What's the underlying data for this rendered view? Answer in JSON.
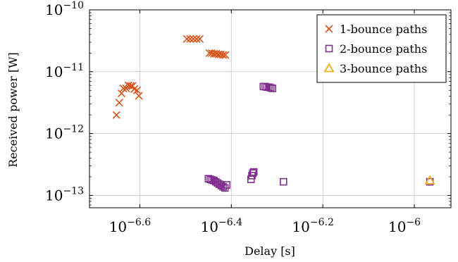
{
  "chart_data": {
    "type": "scatter",
    "title": "",
    "xlabel": "Delay [s]",
    "ylabel": "Received power [W]",
    "xscale": "log",
    "yscale": "log",
    "xlim_log10": [
      -6.71,
      -5.92
    ],
    "ylim_log10": [
      -13.2,
      -10
    ],
    "x_ticks": [
      {
        "base": "10",
        "exp": "−6.6",
        "log10": -6.6
      },
      {
        "base": "10",
        "exp": "−6.4",
        "log10": -6.4
      },
      {
        "base": "10",
        "exp": "−6.2",
        "log10": -6.2
      },
      {
        "base": "10",
        "exp": "−6",
        "log10": -6.0
      }
    ],
    "y_ticks": [
      {
        "base": "10",
        "exp": "−10",
        "log10": -10
      },
      {
        "base": "10",
        "exp": "−11",
        "log10": -11
      },
      {
        "base": "10",
        "exp": "−12",
        "log10": -12
      },
      {
        "base": "10",
        "exp": "−13",
        "log10": -13
      }
    ],
    "grid": true,
    "legend_position": "top-right",
    "series": [
      {
        "name": "1-bounce paths",
        "marker": "x",
        "color": "#d95319",
        "points_log10": [
          [
            -6.651,
            -11.7
          ],
          [
            -6.645,
            -11.5
          ],
          [
            -6.64,
            -11.35
          ],
          [
            -6.636,
            -11.27
          ],
          [
            -6.63,
            -11.27
          ],
          [
            -6.625,
            -11.22
          ],
          [
            -6.62,
            -11.23
          ],
          [
            -6.616,
            -11.23
          ],
          [
            -6.612,
            -11.28
          ],
          [
            -6.606,
            -11.3
          ],
          [
            -6.602,
            -11.39
          ],
          [
            -6.497,
            -10.47
          ],
          [
            -6.49,
            -10.47
          ],
          [
            -6.483,
            -10.47
          ],
          [
            -6.476,
            -10.47
          ],
          [
            -6.469,
            -10.47
          ],
          [
            -6.448,
            -10.7
          ],
          [
            -6.443,
            -10.7
          ],
          [
            -6.438,
            -10.71
          ],
          [
            -6.433,
            -10.71
          ],
          [
            -6.428,
            -10.72
          ],
          [
            -6.423,
            -10.72
          ],
          [
            -6.418,
            -10.73
          ],
          [
            -6.413,
            -10.73
          ]
        ]
      },
      {
        "name": "2-bounce paths",
        "marker": "square",
        "color": "#7e2f8e",
        "points_log10": [
          [
            -6.45,
            -12.73
          ],
          [
            -6.446,
            -12.74
          ],
          [
            -6.442,
            -12.75
          ],
          [
            -6.438,
            -12.76
          ],
          [
            -6.434,
            -12.78
          ],
          [
            -6.43,
            -12.8
          ],
          [
            -6.426,
            -12.82
          ],
          [
            -6.422,
            -12.84
          ],
          [
            -6.418,
            -12.86
          ],
          [
            -6.414,
            -12.88
          ],
          [
            -6.41,
            -12.83
          ],
          [
            -6.357,
            -12.74
          ],
          [
            -6.355,
            -12.68
          ],
          [
            -6.353,
            -12.64
          ],
          [
            -6.351,
            -12.62
          ],
          [
            -6.33,
            -11.24
          ],
          [
            -6.326,
            -11.24
          ],
          [
            -6.322,
            -11.25
          ],
          [
            -6.318,
            -11.25
          ],
          [
            -6.314,
            -11.26
          ],
          [
            -6.31,
            -11.27
          ],
          [
            -6.286,
            -12.78
          ],
          [
            -5.966,
            -12.78
          ]
        ]
      },
      {
        "name": "3-bounce paths",
        "marker": "triangle",
        "color": "#edb120",
        "points_log10": [
          [
            -5.966,
            -12.76
          ]
        ]
      }
    ]
  }
}
